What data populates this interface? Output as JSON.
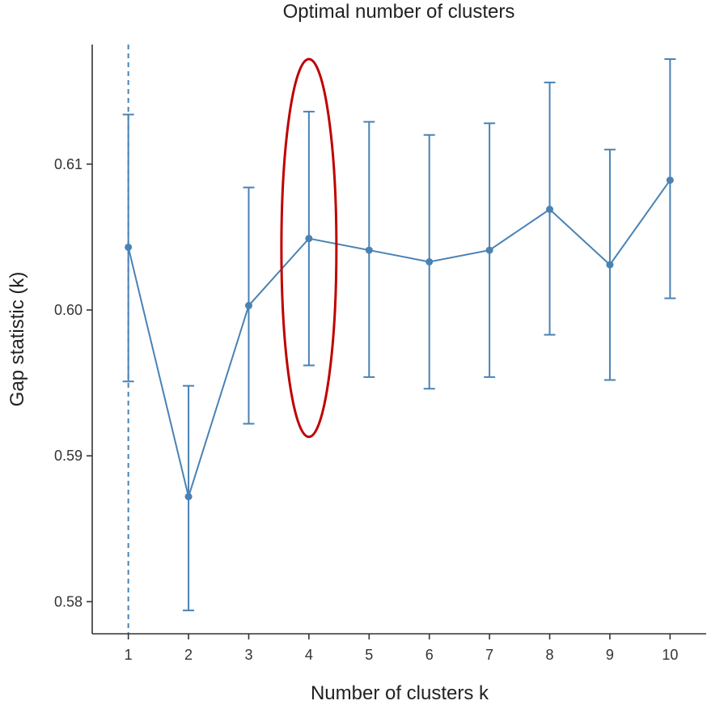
{
  "chart_data": {
    "type": "line",
    "title": "Optimal number of clusters",
    "xlabel": "Number of clusters k",
    "ylabel": "Gap statistic (k)",
    "x": [
      1,
      2,
      3,
      4,
      5,
      6,
      7,
      8,
      9,
      10
    ],
    "series": [
      {
        "values": [
          0.6043,
          0.5872,
          0.6003,
          0.6049,
          0.6041,
          0.6033,
          0.6041,
          0.6069,
          0.6031,
          0.6089
        ],
        "error_low": [
          0.5951,
          0.5794,
          0.5922,
          0.5962,
          0.5954,
          0.5946,
          0.5954,
          0.5983,
          0.5952,
          0.6008
        ],
        "error_high": [
          0.6134,
          0.5948,
          0.6084,
          0.6136,
          0.6129,
          0.612,
          0.6128,
          0.6156,
          0.611,
          0.6172
        ],
        "color": "#4a82b4"
      }
    ],
    "x_ticks": [
      "1",
      "2",
      "3",
      "4",
      "5",
      "6",
      "7",
      "8",
      "9",
      "10"
    ],
    "y_ticks": [
      "0.58",
      "0.59",
      "0.60",
      "0.61"
    ],
    "y_tick_values": [
      0.58,
      0.59,
      0.6,
      0.61
    ],
    "xlim": [
      0.4,
      10.6
    ],
    "ylim": [
      0.5778,
      0.6182
    ],
    "optimal_k_line": 1,
    "highlight": {
      "k": 4,
      "shape": "ellipse",
      "color": "#c00000"
    },
    "grid": false,
    "legend": "none"
  }
}
